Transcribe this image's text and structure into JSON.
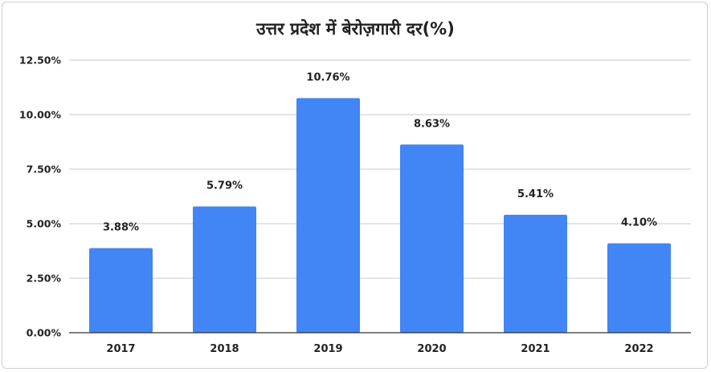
{
  "chart_data": {
    "type": "bar",
    "title": "उत्तर प्रदेश में बेरोज़गारी दर(%)",
    "categories": [
      "2017",
      "2018",
      "2019",
      "2020",
      "2021",
      "2022"
    ],
    "values": [
      3.88,
      5.79,
      10.76,
      8.63,
      5.41,
      4.1
    ],
    "data_labels": [
      "3.88%",
      "5.79%",
      "10.76%",
      "8.63%",
      "5.41%",
      "4.10%"
    ],
    "y_ticks": [
      0,
      2.5,
      5,
      7.5,
      10,
      12.5
    ],
    "y_tick_labels": [
      "0.00%",
      "2.50%",
      "5.00%",
      "7.50%",
      "10.00%",
      "12.50%"
    ],
    "ylim": [
      0,
      12.5
    ],
    "grid": true,
    "legend": "none",
    "bar_color": "#4285f4"
  }
}
